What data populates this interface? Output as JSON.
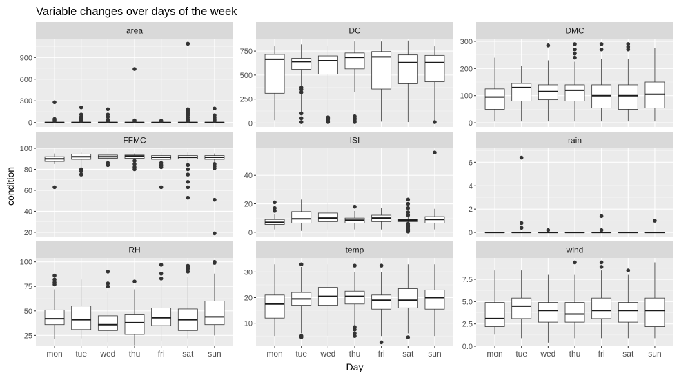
{
  "chart_data": {
    "type": "boxplot",
    "title": "Variable changes over days of the week",
    "xlabel": "Day",
    "ylabel": "condition",
    "categories": [
      "mon",
      "tue",
      "wed",
      "thu",
      "fri",
      "sat",
      "sun"
    ],
    "facets": [
      {
        "name": "area",
        "ylim": [
          -60,
          1160
        ],
        "yticks": [
          0,
          300,
          600,
          900
        ],
        "boxes": [
          {
            "min": 0,
            "q1": 0,
            "median": 0,
            "q3": 5,
            "max": 12,
            "outliers": [
              20,
              35,
              50,
              280
            ]
          },
          {
            "min": 0,
            "q1": 0,
            "median": 0,
            "q3": 5,
            "max": 12,
            "outliers": [
              20,
              40,
              60,
              80,
              110,
              210
            ]
          },
          {
            "min": 0,
            "q1": 0,
            "median": 0,
            "q3": 5,
            "max": 12,
            "outliers": [
              20,
              40,
              80,
              110,
              185
            ]
          },
          {
            "min": 0,
            "q1": 0,
            "median": 0,
            "q3": 5,
            "max": 12,
            "outliers": [
              18,
              30,
              740
            ]
          },
          {
            "min": 0,
            "q1": 0,
            "median": 0,
            "q3": 4,
            "max": 10,
            "outliers": [
              15,
              25
            ]
          },
          {
            "min": 0,
            "q1": 0,
            "median": 0,
            "q3": 5,
            "max": 12,
            "outliers": [
              20,
              40,
              70,
              100,
              130,
              160,
              185,
              1090
            ]
          },
          {
            "min": 0,
            "q1": 0,
            "median": 0,
            "q3": 5,
            "max": 12,
            "outliers": [
              20,
              35,
              50,
              70,
              100,
              195
            ]
          }
        ]
      },
      {
        "name": "DC",
        "ylim": [
          -40,
          880
        ],
        "yticks": [
          0,
          250,
          500,
          750
        ],
        "boxes": [
          {
            "min": 30,
            "q1": 310,
            "median": 665,
            "q3": 715,
            "max": 800,
            "outliers": []
          },
          {
            "min": 90,
            "q1": 560,
            "median": 640,
            "q3": 675,
            "max": 820,
            "outliers": [
              10,
              50,
              100,
              320,
              350,
              370
            ]
          },
          {
            "min": 90,
            "q1": 510,
            "median": 650,
            "q3": 700,
            "max": 800,
            "outliers": [
              10,
              20,
              40,
              50,
              60
            ]
          },
          {
            "min": 320,
            "q1": 565,
            "median": 685,
            "q3": 730,
            "max": 850,
            "outliers": [
              10,
              20,
              40,
              50,
              70
            ]
          },
          {
            "min": 15,
            "q1": 355,
            "median": 690,
            "q3": 745,
            "max": 850,
            "outliers": []
          },
          {
            "min": 10,
            "q1": 410,
            "median": 630,
            "q3": 710,
            "max": 860,
            "outliers": []
          },
          {
            "min": 20,
            "q1": 430,
            "median": 630,
            "q3": 705,
            "max": 800,
            "outliers": [
              10
            ]
          }
        ]
      },
      {
        "name": "DMC",
        "ylim": [
          -15,
          310
        ],
        "yticks": [
          0,
          100,
          200,
          300
        ],
        "boxes": [
          {
            "min": 5,
            "q1": 50,
            "median": 95,
            "q3": 125,
            "max": 240,
            "outliers": []
          },
          {
            "min": 5,
            "q1": 80,
            "median": 130,
            "q3": 145,
            "max": 210,
            "outliers": []
          },
          {
            "min": 5,
            "q1": 85,
            "median": 115,
            "q3": 140,
            "max": 230,
            "outliers": [
              285
            ]
          },
          {
            "min": 5,
            "q1": 80,
            "median": 120,
            "q3": 140,
            "max": 225,
            "outliers": [
              240,
              255,
              270,
              290
            ]
          },
          {
            "min": 5,
            "q1": 55,
            "median": 100,
            "q3": 140,
            "max": 235,
            "outliers": [
              270,
              290
            ]
          },
          {
            "min": 5,
            "q1": 50,
            "median": 100,
            "q3": 140,
            "max": 235,
            "outliers": [
              270,
              280,
              290
            ]
          },
          {
            "min": 5,
            "q1": 55,
            "median": 105,
            "q3": 150,
            "max": 275,
            "outliers": []
          }
        ]
      },
      {
        "name": "FFMC",
        "ylim": [
          16,
          100
        ],
        "yticks": [
          20,
          40,
          60,
          80,
          100
        ],
        "boxes": [
          {
            "min": 85,
            "q1": 87.5,
            "median": 90,
            "q3": 92,
            "max": 95,
            "outliers": [
              63
            ]
          },
          {
            "min": 82,
            "q1": 89.5,
            "median": 92,
            "q3": 94.5,
            "max": 96,
            "outliers": [
              75,
              78,
              80
            ]
          },
          {
            "min": 87,
            "q1": 90.5,
            "median": 92,
            "q3": 93.5,
            "max": 95,
            "outliers": [
              84,
              86
            ]
          },
          {
            "min": 87,
            "q1": 90.5,
            "median": 92.5,
            "q3": 93.5,
            "max": 95,
            "outliers": [
              80,
              82,
              85,
              88
            ]
          },
          {
            "min": 85,
            "q1": 89.5,
            "median": 91.5,
            "q3": 93,
            "max": 96,
            "outliers": [
              63,
              82,
              84,
              86
            ]
          },
          {
            "min": 86,
            "q1": 90,
            "median": 91.5,
            "q3": 93,
            "max": 96,
            "outliers": [
              53,
              63,
              68,
              75,
              80,
              84
            ]
          },
          {
            "min": 85,
            "q1": 89.5,
            "median": 91.5,
            "q3": 93,
            "max": 95,
            "outliers": [
              19,
              51,
              81,
              83,
              85
            ]
          }
        ]
      },
      {
        "name": "ISI",
        "ylim": [
          -3,
          59
        ],
        "yticks": [
          0,
          20,
          40
        ],
        "boxes": [
          {
            "min": 2,
            "q1": 5.5,
            "median": 7,
            "q3": 9,
            "max": 13,
            "outliers": [
              15,
              17,
              21
            ]
          },
          {
            "min": 1,
            "q1": 6.5,
            "median": 9.5,
            "q3": 14.5,
            "max": 23,
            "outliers": []
          },
          {
            "min": 2,
            "q1": 7.5,
            "median": 10,
            "q3": 13.5,
            "max": 21,
            "outliers": []
          },
          {
            "min": 2,
            "q1": 6.5,
            "median": 8.5,
            "q3": 10,
            "max": 15,
            "outliers": [
              18
            ]
          },
          {
            "min": 2,
            "q1": 7.5,
            "median": 10,
            "q3": 12,
            "max": 17,
            "outliers": []
          },
          {
            "min": 6.5,
            "q1": 7.5,
            "median": 8.5,
            "q3": 9,
            "max": 11,
            "outliers": [
              0.5,
              1,
              2,
              3,
              4,
              5,
              6,
              12,
              14,
              17,
              20,
              23
            ]
          },
          {
            "min": 2,
            "q1": 6.5,
            "median": 9,
            "q3": 11,
            "max": 16.5,
            "outliers": [
              56
            ]
          }
        ]
      },
      {
        "name": "rain",
        "ylim": [
          -0.35,
          7.2
        ],
        "yticks": [
          0,
          2,
          4,
          6
        ],
        "boxes": [
          {
            "min": 0,
            "q1": 0,
            "median": 0,
            "q3": 0,
            "max": 0,
            "outliers": []
          },
          {
            "min": 0,
            "q1": 0,
            "median": 0,
            "q3": 0,
            "max": 0,
            "outliers": [
              0.4,
              0.8,
              6.4
            ]
          },
          {
            "min": 0,
            "q1": 0,
            "median": 0,
            "q3": 0,
            "max": 0,
            "outliers": [
              0.2
            ]
          },
          {
            "min": 0,
            "q1": 0,
            "median": 0,
            "q3": 0,
            "max": 0,
            "outliers": []
          },
          {
            "min": 0,
            "q1": 0,
            "median": 0,
            "q3": 0,
            "max": 0,
            "outliers": [
              0.2,
              1.4
            ]
          },
          {
            "min": 0,
            "q1": 0,
            "median": 0,
            "q3": 0,
            "max": 0,
            "outliers": []
          },
          {
            "min": 0,
            "q1": 0,
            "median": 0,
            "q3": 0,
            "max": 0,
            "outliers": [
              1.0
            ]
          }
        ]
      },
      {
        "name": "RH",
        "ylim": [
          14,
          104
        ],
        "yticks": [
          25,
          50,
          75,
          100
        ],
        "boxes": [
          {
            "min": 21,
            "q1": 36,
            "median": 42,
            "q3": 51,
            "max": 72,
            "outliers": [
              77,
              79,
              82,
              86
            ]
          },
          {
            "min": 22,
            "q1": 31,
            "median": 41,
            "q3": 55,
            "max": 82,
            "outliers": []
          },
          {
            "min": 18,
            "q1": 30,
            "median": 36,
            "q3": 45,
            "max": 70,
            "outliers": [
              75,
              78,
              90
            ]
          },
          {
            "min": 15,
            "q1": 26,
            "median": 38,
            "q3": 46,
            "max": 72,
            "outliers": [
              80
            ]
          },
          {
            "min": 19,
            "q1": 35,
            "median": 43,
            "q3": 53,
            "max": 78,
            "outliers": [
              83,
              88,
              97
            ]
          },
          {
            "min": 22,
            "q1": 30,
            "median": 41,
            "q3": 52,
            "max": 85,
            "outliers": [
              90,
              93,
              95,
              96
            ]
          },
          {
            "min": 25,
            "q1": 36,
            "median": 44,
            "q3": 60,
            "max": 88,
            "outliers": [
              99,
              100
            ]
          }
        ]
      },
      {
        "name": "temp",
        "ylim": [
          1,
          35.5
        ],
        "yticks": [
          10,
          20,
          30
        ],
        "boxes": [
          {
            "min": 5,
            "q1": 12,
            "median": 17.5,
            "q3": 21,
            "max": 33,
            "outliers": []
          },
          {
            "min": 6,
            "q1": 17,
            "median": 19.5,
            "q3": 22,
            "max": 32,
            "outliers": [
              4.5,
              5,
              33
            ]
          },
          {
            "min": 5,
            "q1": 17,
            "median": 20.5,
            "q3": 24,
            "max": 33,
            "outliers": []
          },
          {
            "min": 9,
            "q1": 17.5,
            "median": 20.5,
            "q3": 22.5,
            "max": 30,
            "outliers": [
              5,
              6,
              7.5,
              8.5,
              32.5
            ]
          },
          {
            "min": 5,
            "q1": 15.5,
            "median": 19,
            "q3": 21,
            "max": 30,
            "outliers": [
              2.5,
              32.5
            ]
          },
          {
            "min": 6,
            "q1": 16,
            "median": 19,
            "q3": 23.5,
            "max": 33,
            "outliers": [
              4.5
            ]
          },
          {
            "min": 5,
            "q1": 15.5,
            "median": 20,
            "q3": 23,
            "max": 33,
            "outliers": []
          }
        ]
      },
      {
        "name": "wind",
        "ylim": [
          0,
          9.9
        ],
        "yticks": [
          0.0,
          2.5,
          5.0,
          7.5
        ],
        "tick_decimals": 1,
        "boxes": [
          {
            "min": 1.3,
            "q1": 2.2,
            "median": 3.1,
            "q3": 4.9,
            "max": 8.5,
            "outliers": []
          },
          {
            "min": 0.9,
            "q1": 3.1,
            "median": 4.5,
            "q3": 5.4,
            "max": 8.5,
            "outliers": []
          },
          {
            "min": 0.4,
            "q1": 2.7,
            "median": 4.0,
            "q3": 4.9,
            "max": 8.0,
            "outliers": []
          },
          {
            "min": 0.9,
            "q1": 2.7,
            "median": 3.6,
            "q3": 4.9,
            "max": 8.0,
            "outliers": [
              9.4
            ]
          },
          {
            "min": 0.9,
            "q1": 3.1,
            "median": 4.0,
            "q3": 5.4,
            "max": 8.5,
            "outliers": [
              8.9,
              9.4
            ]
          },
          {
            "min": 0.9,
            "q1": 2.7,
            "median": 4.0,
            "q3": 4.9,
            "max": 8.0,
            "outliers": [
              8.5
            ]
          },
          {
            "min": 0.9,
            "q1": 2.2,
            "median": 4.0,
            "q3": 5.4,
            "max": 9.4,
            "outliers": []
          }
        ]
      }
    ]
  }
}
